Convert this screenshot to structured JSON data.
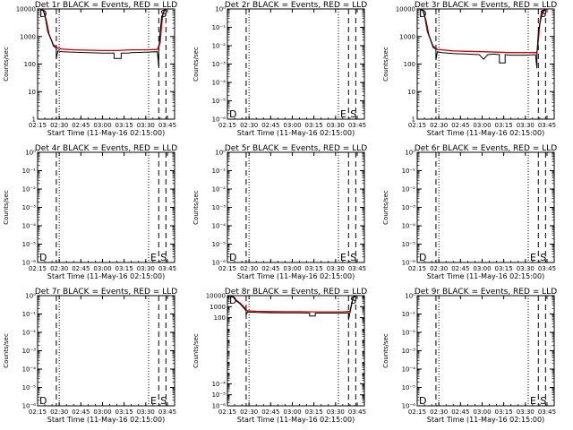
{
  "figure": {
    "title_suffix": "BLACK = Events, RED = LLD",
    "xlabel": "Start Time (11-May-16 02:15:00)",
    "ylabel": "Counts/sec",
    "colors": {
      "events": "#000000",
      "lld": "#d40000"
    }
  },
  "chart_data": [
    {
      "type": "line",
      "title": "Det 1r BLACK = Events, RED = LLD",
      "xlabel": "Start Time (11-May-16 02:15:00)",
      "ylabel": "Counts/sec",
      "xlim": [
        "02:15",
        "03:50"
      ],
      "xticks": [
        "02:15",
        "02:30",
        "02:45",
        "03:00",
        "03:15",
        "03:30",
        "03:45"
      ],
      "yscale": "log",
      "ylim": [
        1,
        10000
      ],
      "yticks": [
        "1",
        "10",
        "100",
        "1000",
        "10000"
      ],
      "dashed_lines": [
        "02:28",
        "03:39",
        "03:44"
      ],
      "dotted_lines": [
        "02:30",
        "03:32"
      ],
      "markers": [
        {
          "label": "D",
          "x": "02:15",
          "pos": "top"
        },
        {
          "label": "S",
          "x": "03:39",
          "pos": "top"
        }
      ],
      "series": [
        {
          "color": "red",
          "x": [
            "02:15",
            "02:17",
            "02:19",
            "02:20",
            "02:22",
            "02:26",
            "02:28",
            "02:29",
            "02:32",
            "02:40",
            "02:50",
            "03:00",
            "03:10",
            "03:20",
            "03:30",
            "03:38",
            "03:40",
            "03:41",
            "03:42",
            "03:43",
            "03:44"
          ],
          "values": [
            10000,
            10000,
            9000,
            6000,
            1500,
            500,
            420,
            380,
            350,
            330,
            320,
            310,
            310,
            330,
            330,
            340,
            600,
            2500,
            7000,
            9500,
            10000
          ]
        },
        {
          "color": "black",
          "x": [
            "02:15",
            "02:17",
            "02:19",
            "02:21",
            "02:23",
            "02:26",
            "02:28",
            "02:28",
            "02:29",
            "02:32",
            "02:40",
            "02:50",
            "03:00",
            "03:08",
            "03:08",
            "03:13",
            "03:13",
            "03:18",
            "03:20",
            "03:30",
            "03:38",
            "03:39",
            "03:39",
            "03:40",
            "03:41",
            "03:43",
            "03:44"
          ],
          "values": [
            10000,
            10000,
            8500,
            4000,
            1200,
            450,
            380,
            150,
            300,
            280,
            270,
            260,
            250,
            250,
            160,
            160,
            250,
            250,
            260,
            270,
            280,
            80,
            300,
            1500,
            5000,
            9000,
            10000
          ]
        }
      ]
    },
    {
      "type": "line",
      "title": "Det 2r BLACK = Events, RED = LLD",
      "xlabel": "Start Time (11-May-16 02:15:00)",
      "ylabel": "Counts/sec",
      "xlim": [
        "02:15",
        "03:50"
      ],
      "xticks": [
        "02:15",
        "02:30",
        "02:45",
        "03:00",
        "03:15",
        "03:30",
        "03:45"
      ],
      "yscale": "log",
      "ylim": [
        1e-06,
        1
      ],
      "yticks": [
        "10<sup>-6</sup>",
        "10<sup>-5</sup>",
        "10<sup>-4</sup>",
        "10<sup>-3</sup>",
        "10<sup>-2</sup>",
        "10<sup>-1</sup>",
        "1"
      ],
      "ytick_labels": [
        "10⁻⁶",
        "10⁻⁵",
        "10⁻⁴",
        "10⁻³",
        "10⁻²",
        "10⁻¹",
        "10⁰"
      ],
      "dashed_lines": [
        "02:28",
        "03:39",
        "03:44"
      ],
      "dotted_lines": [
        "02:30",
        "03:32"
      ],
      "markers": [
        {
          "label": "D",
          "x": "02:15",
          "pos": "bottom"
        },
        {
          "label": "E",
          "x": "03:32",
          "pos": "bottom"
        },
        {
          "label": "S",
          "x": "03:39",
          "pos": "bottom"
        }
      ],
      "series": []
    },
    {
      "type": "line",
      "title": "Det 3r BLACK = Events, RED = LLD",
      "xlabel": "Start Time (11-May-16 02:15:00)",
      "ylabel": "Counts/sec",
      "xlim": [
        "02:15",
        "03:50"
      ],
      "xticks": [
        "02:15",
        "02:30",
        "02:45",
        "03:00",
        "03:15",
        "03:30",
        "03:45"
      ],
      "yscale": "log",
      "ylim": [
        1,
        10000
      ],
      "yticks": [
        "1",
        "10",
        "100",
        "1000",
        "10000"
      ],
      "dashed_lines": [
        "02:28",
        "03:39",
        "03:44"
      ],
      "dotted_lines": [
        "02:30",
        "03:32"
      ],
      "markers": [
        {
          "label": "D",
          "x": "02:15",
          "pos": "top"
        },
        {
          "label": "S",
          "x": "03:39",
          "pos": "top"
        }
      ],
      "series": [
        {
          "color": "red",
          "x": [
            "02:15",
            "02:17",
            "02:19",
            "02:20",
            "02:22",
            "02:26",
            "02:28",
            "02:29",
            "02:32",
            "02:40",
            "02:50",
            "03:00",
            "03:10",
            "03:20",
            "03:30",
            "03:38",
            "03:39",
            "03:40",
            "03:41",
            "03:43",
            "03:44"
          ],
          "values": [
            10000,
            10000,
            9000,
            6000,
            1500,
            450,
            380,
            340,
            330,
            300,
            290,
            280,
            270,
            260,
            260,
            260,
            700,
            3000,
            7000,
            9500,
            10000
          ]
        },
        {
          "color": "black",
          "x": [
            "02:15",
            "02:17",
            "02:19",
            "02:21",
            "02:23",
            "02:26",
            "02:28",
            "02:28",
            "02:29",
            "02:32",
            "02:40",
            "02:50",
            "02:58",
            "03:01",
            "03:04",
            "03:08",
            "03:12",
            "03:12",
            "03:16",
            "03:16",
            "03:20",
            "03:30",
            "03:37",
            "03:38",
            "03:38",
            "03:39",
            "03:41",
            "03:43",
            "03:44"
          ],
          "values": [
            10000,
            10000,
            8500,
            4000,
            1200,
            400,
            350,
            140,
            280,
            260,
            240,
            230,
            220,
            150,
            220,
            230,
            220,
            110,
            110,
            220,
            210,
            210,
            220,
            70,
            220,
            1500,
            5000,
            9000,
            10000
          ]
        }
      ]
    },
    {
      "type": "line",
      "title": "Det 4r BLACK = Events, RED = LLD",
      "xlabel": "Start Time (11-May-16 02:15:00)",
      "ylabel": "Counts/sec",
      "xlim": [
        "02:15",
        "03:50"
      ],
      "xticks": [
        "02:15",
        "02:30",
        "02:45",
        "03:00",
        "03:15",
        "03:30",
        "03:45"
      ],
      "yscale": "log",
      "ylim": [
        1e-06,
        1
      ],
      "ytick_labels": [
        "10⁻⁶",
        "10⁻⁵",
        "10⁻⁴",
        "10⁻³",
        "10⁻²",
        "10⁻¹",
        "10⁰"
      ],
      "dashed_lines": [
        "02:28",
        "03:39",
        "03:44"
      ],
      "dotted_lines": [
        "02:30",
        "03:32"
      ],
      "markers": [
        {
          "label": "D",
          "x": "02:15",
          "pos": "bottom"
        },
        {
          "label": "E",
          "x": "03:32",
          "pos": "bottom"
        },
        {
          "label": "S",
          "x": "03:39",
          "pos": "bottom"
        }
      ],
      "series": []
    },
    {
      "type": "line",
      "title": "Det 5r BLACK = Events, RED = LLD",
      "xlabel": "Start Time (11-May-16 02:15:00)",
      "ylabel": "Counts/sec",
      "xlim": [
        "02:15",
        "03:50"
      ],
      "xticks": [
        "02:15",
        "02:30",
        "02:45",
        "03:00",
        "03:15",
        "03:30",
        "03:45"
      ],
      "yscale": "log",
      "ylim": [
        1e-06,
        1
      ],
      "ytick_labels": [
        "10⁻⁶",
        "10⁻⁵",
        "10⁻⁴",
        "10⁻³",
        "10⁻²",
        "10⁻¹",
        "10⁰"
      ],
      "dashed_lines": [
        "02:28",
        "03:39",
        "03:44"
      ],
      "dotted_lines": [
        "02:30",
        "03:32"
      ],
      "markers": [
        {
          "label": "D",
          "x": "02:15",
          "pos": "bottom"
        },
        {
          "label": "E",
          "x": "03:32",
          "pos": "bottom"
        },
        {
          "label": "S",
          "x": "03:39",
          "pos": "bottom"
        }
      ],
      "series": []
    },
    {
      "type": "line",
      "title": "Det 6r BLACK = Events, RED = LLD",
      "xlabel": "Start Time (11-May-16 02:15:00)",
      "ylabel": "Counts/sec",
      "xlim": [
        "02:15",
        "03:50"
      ],
      "xticks": [
        "02:15",
        "02:30",
        "02:45",
        "03:00",
        "03:15",
        "03:30",
        "03:45"
      ],
      "yscale": "log",
      "ylim": [
        1e-06,
        1
      ],
      "ytick_labels": [
        "10⁻⁶",
        "10⁻⁵",
        "10⁻⁴",
        "10⁻³",
        "10⁻²",
        "10⁻¹",
        "10⁰"
      ],
      "dashed_lines": [
        "02:28",
        "03:39",
        "03:44"
      ],
      "dotted_lines": [
        "02:30",
        "03:32"
      ],
      "markers": [
        {
          "label": "D",
          "x": "02:15",
          "pos": "bottom"
        },
        {
          "label": "E",
          "x": "03:32",
          "pos": "bottom"
        },
        {
          "label": "S",
          "x": "03:39",
          "pos": "bottom"
        }
      ],
      "series": []
    },
    {
      "type": "line",
      "title": "Det 7r BLACK = Events, RED = LLD",
      "xlabel": "Start Time (11-May-16 02:15:00)",
      "ylabel": "Counts/sec",
      "xlim": [
        "02:15",
        "03:50"
      ],
      "xticks": [
        "02:15",
        "02:30",
        "02:45",
        "03:00",
        "03:15",
        "03:30",
        "03:45"
      ],
      "yscale": "log",
      "ylim": [
        1e-06,
        1
      ],
      "ytick_labels": [
        "10⁻⁶",
        "10⁻⁵",
        "10⁻⁴",
        "10⁻³",
        "10⁻²",
        "10⁻¹",
        "10⁰"
      ],
      "dashed_lines": [
        "02:28",
        "03:39",
        "03:44"
      ],
      "dotted_lines": [
        "02:30",
        "03:32"
      ],
      "markers": [
        {
          "label": "D",
          "x": "02:15",
          "pos": "bottom"
        },
        {
          "label": "E",
          "x": "03:32",
          "pos": "bottom"
        },
        {
          "label": "S",
          "x": "03:39",
          "pos": "bottom"
        }
      ],
      "series": []
    },
    {
      "type": "line",
      "title": "Det 8r BLACK = Events, RED = LLD",
      "xlabel": "Start Time (11-May-16 02:15:00)",
      "ylabel": "Counts/sec",
      "xlim": [
        "02:15",
        "03:50"
      ],
      "xticks": [
        "02:15",
        "02:30",
        "02:45",
        "03:00",
        "03:15",
        "03:30",
        "03:45"
      ],
      "yscale": "log",
      "ylim": [
        1e-06,
        10000
      ],
      "ytick_labels": [
        "10⁻⁶",
        "10⁻⁵",
        "10⁻⁴",
        "100",
        "1000",
        "10000"
      ],
      "ytick_values": [
        1e-06,
        1e-05,
        0.0001,
        100,
        1000,
        10000
      ],
      "dashed_lines": [
        "02:28",
        "03:39",
        "03:44"
      ],
      "dotted_lines": [
        "02:30",
        "03:32"
      ],
      "markers": [
        {
          "label": "D",
          "x": "02:15",
          "pos": "top"
        },
        {
          "label": "S",
          "x": "03:39",
          "pos": "top"
        }
      ],
      "series": [
        {
          "color": "red",
          "x": [
            "02:15",
            "02:17",
            "02:19",
            "02:21",
            "02:24",
            "02:27",
            "02:28",
            "02:29",
            "02:35",
            "02:45",
            "02:55",
            "03:05",
            "03:15",
            "03:25",
            "03:35",
            "03:40",
            "03:41",
            "03:42",
            "03:43",
            "03:44"
          ],
          "values": [
            10000,
            10000,
            8000,
            4000,
            2000,
            800,
            500,
            420,
            380,
            360,
            350,
            350,
            340,
            340,
            340,
            380,
            1500,
            6000,
            9500,
            10000
          ]
        },
        {
          "color": "black",
          "x": [
            "02:15",
            "02:17",
            "02:19",
            "02:21",
            "02:24",
            "02:27",
            "02:28",
            "02:28",
            "02:29",
            "02:35",
            "02:45",
            "02:55",
            "03:05",
            "03:12",
            "03:12",
            "03:16",
            "03:16",
            "03:25",
            "03:35",
            "03:39",
            "03:39",
            "03:40",
            "03:42",
            "03:43",
            "03:44"
          ],
          "values": [
            10000,
            10000,
            7500,
            3500,
            1700,
            600,
            400,
            180,
            330,
            300,
            280,
            270,
            270,
            260,
            140,
            140,
            260,
            260,
            260,
            270,
            60,
            280,
            5000,
            9000,
            10000
          ]
        }
      ]
    },
    {
      "type": "line",
      "title": "Det 9r BLACK = Events, RED = LLD",
      "xlabel": "Start Time (11-May-16 02:15:00)",
      "ylabel": "Counts/sec",
      "xlim": [
        "02:15",
        "03:50"
      ],
      "xticks": [
        "02:15",
        "02:30",
        "02:45",
        "03:00",
        "03:15",
        "03:30",
        "03:45"
      ],
      "yscale": "log",
      "ylim": [
        1e-06,
        1
      ],
      "ytick_labels": [
        "10⁻⁶",
        "10⁻⁵",
        "10⁻⁴",
        "10⁻³",
        "10⁻²",
        "10⁻¹",
        "10⁰"
      ],
      "dashed_lines": [
        "02:28",
        "03:39",
        "03:44"
      ],
      "dotted_lines": [
        "02:30",
        "03:32"
      ],
      "markers": [
        {
          "label": "D",
          "x": "02:15",
          "pos": "bottom"
        },
        {
          "label": "E",
          "x": "03:32",
          "pos": "bottom"
        },
        {
          "label": "S",
          "x": "03:39",
          "pos": "bottom"
        }
      ],
      "series": []
    }
  ]
}
